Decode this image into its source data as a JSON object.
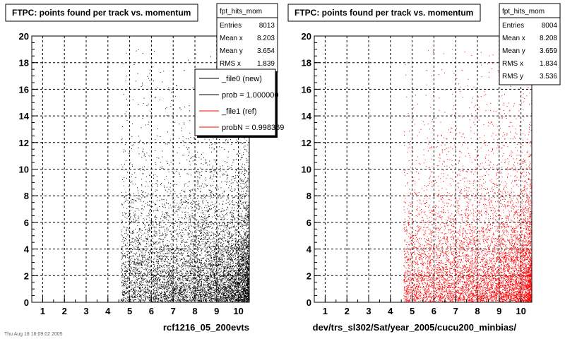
{
  "chart_data": [
    {
      "type": "scatter",
      "title": "FTPC: points found per track vs. momentum",
      "xlabel": "rcf1216_05_200evts",
      "ylabel": "",
      "xlim": [
        0.5,
        10.5
      ],
      "ylim": [
        0,
        20
      ],
      "x_ticks": [
        "1",
        "2",
        "3",
        "4",
        "5",
        "6",
        "7",
        "8",
        "9",
        "10"
      ],
      "y_ticks": [
        "0",
        "2",
        "4",
        "6",
        "8",
        "10",
        "12",
        "14",
        "16",
        "18",
        "20"
      ],
      "grid": true,
      "marker_color": "#000000",
      "stats": {
        "name": "fpt_hits_mom",
        "rows": [
          {
            "label": "Entries",
            "value": "8013"
          },
          {
            "label": "Mean x",
            "value": "8.203"
          },
          {
            "label": "Mean y",
            "value": "3.654"
          },
          {
            "label": "RMS x",
            "value": "1.839"
          }
        ]
      },
      "legend": {
        "position": "top-right",
        "entries": [
          {
            "label": "_file0 (new)",
            "color": "#000000"
          },
          {
            "label": "prob = 1.000000",
            "color": "#000000"
          },
          {
            "label": "_file1 (ref)",
            "color": "#ff0000"
          },
          {
            "label": "probN = 0.998369",
            "color": "#ff0000"
          }
        ]
      },
      "footnote": "Thu Aug 18 16:09:02 2005",
      "entries": 8013
    },
    {
      "type": "scatter",
      "title": "FTPC: points found per track vs. momentum",
      "xlabel": "dev/trs_sl302/Sat/year_2005/cucu200_minbias/",
      "ylabel": "",
      "xlim": [
        0.5,
        10.5
      ],
      "ylim": [
        0,
        20
      ],
      "x_ticks": [
        "1",
        "2",
        "3",
        "4",
        "5",
        "6",
        "7",
        "8",
        "9",
        "10"
      ],
      "y_ticks": [
        "0",
        "2",
        "4",
        "6",
        "8",
        "10",
        "12",
        "14",
        "16",
        "18",
        "20"
      ],
      "grid": true,
      "marker_color": "#ff0000",
      "stats": {
        "name": "fpt_hits_mom",
        "rows": [
          {
            "label": "Entries",
            "value": "8004"
          },
          {
            "label": "Mean x",
            "value": "8.208"
          },
          {
            "label": "Mean y",
            "value": "3.659"
          },
          {
            "label": "RMS x",
            "value": "1.834"
          },
          {
            "label": "RMS y",
            "value": "3.536"
          }
        ]
      },
      "entries": 8004
    }
  ]
}
